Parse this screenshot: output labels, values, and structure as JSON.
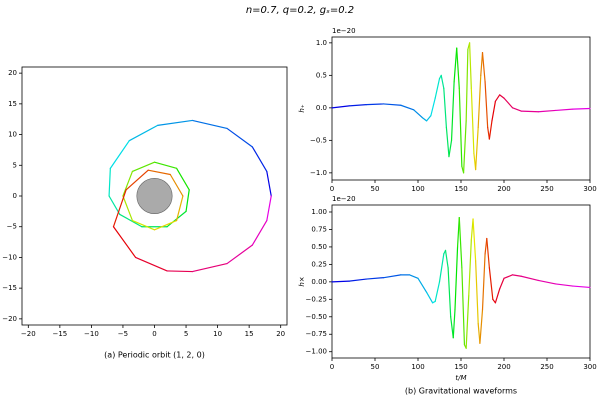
{
  "title": "n=0.7, q=0.2, gₛ=0.2",
  "chart_data": [
    {
      "type": "line",
      "caption": "(a) Periodic orbit (1, 2, 0)",
      "colormap": "hsv",
      "xlim": [
        -21,
        21
      ],
      "ylim": [
        -21,
        21
      ],
      "xticks": [
        {
          "value": -20,
          "label": "−20"
        },
        {
          "value": -15,
          "label": "−15"
        },
        {
          "value": -10,
          "label": "−10"
        },
        {
          "value": -5,
          "label": "−5"
        },
        0,
        5,
        10,
        15,
        20
      ],
      "yticks": [
        {
          "value": -20,
          "label": "−20"
        },
        {
          "value": -15,
          "label": "−15"
        },
        {
          "value": -10,
          "label": "−10"
        },
        {
          "value": -5,
          "label": "−5"
        },
        0,
        5,
        10,
        15,
        20
      ],
      "x": [
        18.5,
        17.8,
        15.5,
        11.5,
        6,
        0.5,
        -4,
        -7,
        -7.2,
        -5.5,
        -2,
        2,
        5,
        5.5,
        3.5,
        0,
        -3.5,
        -5,
        -3.5,
        0,
        3.5,
        4.5,
        2.5,
        -1,
        -4.5,
        -6.5,
        -3,
        2,
        6,
        11.5,
        15.5,
        17.8,
        18.5
      ],
      "values": [
        0,
        4,
        8,
        11,
        12.3,
        11.5,
        9,
        4.5,
        0,
        -3,
        -5,
        -5,
        -2.5,
        1,
        4.5,
        5.5,
        4,
        0,
        -4,
        -5.5,
        -4,
        0,
        3.5,
        4.2,
        1,
        -5,
        -10,
        -12.2,
        -12.3,
        -11,
        -8,
        -4,
        0
      ]
    },
    {
      "type": "line",
      "ylabel": "h₊",
      "offset_text": "1e−20",
      "colormap": "hsv",
      "xlim": [
        0,
        300
      ],
      "ylim": [
        -1.11,
        1.09
      ],
      "xticks": [
        0,
        50,
        100,
        150,
        200,
        250,
        300
      ],
      "yticks": [
        {
          "value": -1,
          "label": "−1.0"
        },
        {
          "value": -0.5,
          "label": "−0.5"
        },
        {
          "value": 0,
          "label": "0.0"
        },
        0.5,
        {
          "value": 1,
          "label": "1.0"
        }
      ],
      "x": [
        0,
        20,
        40,
        60,
        80,
        95,
        105,
        110,
        115,
        120,
        125,
        127,
        130,
        133,
        136,
        139,
        142,
        145,
        148,
        151,
        153,
        156,
        158,
        160,
        162,
        165,
        167,
        170,
        173,
        175,
        178,
        181,
        183,
        186,
        190,
        195,
        200,
        210,
        220,
        240,
        260,
        280,
        300
      ],
      "values": [
        0,
        0.03,
        0.05,
        0.06,
        0.04,
        -0.03,
        -0.15,
        -0.2,
        -0.12,
        0.15,
        0.45,
        0.5,
        0.3,
        -0.3,
        -0.75,
        -0.5,
        0.4,
        0.92,
        0.3,
        -0.9,
        -1.0,
        -0.2,
        0.9,
        1.0,
        0.3,
        -0.7,
        -0.95,
        -0.3,
        0.5,
        0.85,
        0.4,
        -0.3,
        -0.48,
        -0.2,
        0.1,
        0.2,
        0.15,
        0.0,
        -0.05,
        -0.06,
        -0.04,
        -0.02,
        -0.01
      ]
    },
    {
      "type": "line",
      "ylabel": "h×",
      "offset_text": "1e−20",
      "xlabel": "t/M",
      "caption": "(b) Gravitational waveforms",
      "colormap": "hsv",
      "xlim": [
        0,
        300
      ],
      "ylim": [
        -1.09,
        1.1
      ],
      "xticks": [
        0,
        50,
        100,
        150,
        200,
        250,
        300
      ],
      "yticks": [
        {
          "value": -1,
          "label": "−1.00"
        },
        {
          "value": -0.75,
          "label": "−0.75"
        },
        {
          "value": -0.5,
          "label": "−0.50"
        },
        {
          "value": -0.25,
          "label": "−0.25"
        },
        {
          "value": 0,
          "label": "0.00"
        },
        0.25,
        {
          "value": 0.5,
          "label": "0.50"
        },
        0.75,
        {
          "value": 1,
          "label": "1.00"
        }
      ],
      "x": [
        0,
        20,
        40,
        60,
        80,
        90,
        100,
        110,
        117,
        120,
        125,
        130,
        132,
        135,
        138,
        141,
        143,
        146,
        148,
        151,
        154,
        156,
        159,
        162,
        164,
        167,
        170,
        172,
        175,
        178,
        180,
        183,
        187,
        190,
        195,
        200,
        210,
        220,
        240,
        260,
        280,
        300
      ],
      "values": [
        0,
        0.01,
        0.04,
        0.06,
        0.1,
        0.1,
        0.05,
        -0.15,
        -0.3,
        -0.28,
        0.0,
        0.4,
        0.45,
        0.2,
        -0.5,
        -0.8,
        -0.4,
        0.5,
        0.92,
        0.2,
        -0.9,
        -0.95,
        -0.2,
        0.6,
        0.9,
        0.3,
        -0.6,
        -0.88,
        -0.4,
        0.4,
        0.62,
        0.2,
        -0.25,
        -0.3,
        -0.1,
        0.05,
        0.1,
        0.08,
        0.02,
        -0.03,
        -0.06,
        -0.08
      ]
    }
  ]
}
